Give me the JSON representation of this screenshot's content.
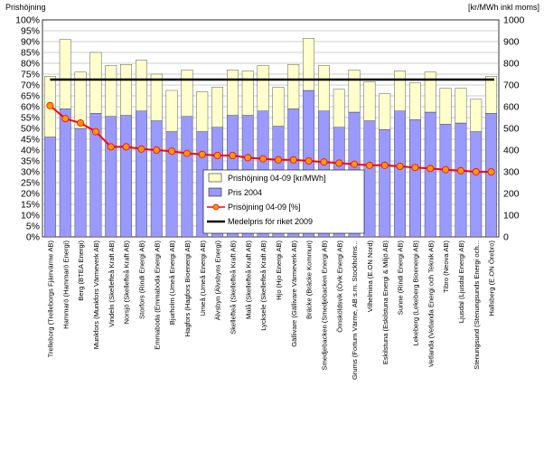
{
  "chart_data": {
    "type": "bar",
    "left_axis_title": "Prishöjning",
    "right_axis_title": "[kr/MWh inkl moms]",
    "left_ylim": [
      0,
      100
    ],
    "left_ticks": [
      "0%",
      "5%",
      "10%",
      "15%",
      "20%",
      "25%",
      "30%",
      "35%",
      "40%",
      "45%",
      "50%",
      "55%",
      "60%",
      "65%",
      "70%",
      "75%",
      "80%",
      "85%",
      "90%",
      "95%",
      "100%"
    ],
    "right_ylim": [
      0,
      1000
    ],
    "right_ticks": [
      "0",
      "100",
      "200",
      "300",
      "400",
      "500",
      "600",
      "700",
      "800",
      "900",
      "1000"
    ],
    "grid": true,
    "legend_position": "center-right",
    "categories": [
      "Trelleborg (Trelleborgs Fjärrvärme AB)",
      "Hammarö (Hammarö Energi)",
      "Berg (BTEA Energi)",
      "Munkfors (Munkfors Värmeverk AB)",
      "Vindeln (Skellefteå Kraft AB)",
      "Norsjö (Skellefteå Kraft AB)",
      "Storfors (Rindi Energi AB)",
      "Emmaboda (Emmaboda Energi AB)",
      "Bjurholm (Umeå Energi AB)",
      "Hagfors (Hagfors Bioenergi AB)",
      "Umeå (Umeå Energi AB)",
      "Älvsbyn (Älvsbyns Energi)",
      "Skellefteå (Skellefteå Kraft AB)",
      "Malå (Skellefteå Kraft AB)",
      "Lycksele (Skellefteå Kraft AB)",
      "Hjo (Hjo Energi AB)",
      "Gällivare (Gällivare Värmeverk AB)",
      "Bräcke (Bräcke Kommun)",
      "Smedjebacken (Smedjebacken Energi AB)",
      "Örnsköldsvik (Övik Energi AB)",
      "Grums (Fortum Värme, AB s.m. Stockholms...",
      "Vilhelmina (E.ON Nord)",
      "Eskilstuna (Eskilstuna Energi & Miljö AB)",
      "Sunne (Rindi Energi AB)",
      "Lekeberg (Lekeberg Bioenergi AB)",
      "Vetlanda (Vetlanda Energi och Teknik AB)",
      "Tibro (Neova AB)",
      "Ljusdal (Ljusdal Energi AB)",
      "Stenungsund (Stenungsunds Energi och...",
      "Hallsberg (E.ON Örebro)"
    ],
    "series": [
      {
        "name": "Pris 2004",
        "axis": "right",
        "kind": "stacked-bar-base",
        "color": "#9999ff",
        "values": [
          460,
          590,
          500,
          570,
          555,
          560,
          580,
          535,
          485,
          555,
          485,
          505,
          560,
          560,
          580,
          510,
          590,
          675,
          580,
          505,
          575,
          535,
          495,
          580,
          540,
          575,
          520,
          525,
          485,
          570
        ]
      },
      {
        "name": "Prishöjning 04-09 [kr/MWh]",
        "axis": "right",
        "kind": "stacked-bar-top",
        "color": "#ffffcc",
        "values": [
          280,
          320,
          260,
          280,
          235,
          235,
          235,
          215,
          190,
          215,
          185,
          185,
          210,
          205,
          210,
          180,
          205,
          240,
          210,
          175,
          195,
          180,
          165,
          185,
          170,
          185,
          165,
          160,
          150,
          170
        ]
      },
      {
        "name": "Prisöjning 04-09 [%]",
        "axis": "left",
        "kind": "line",
        "color": "#ff0000",
        "marker_color": "#ff9900",
        "values": [
          60.5,
          54.5,
          52.5,
          48.5,
          41.5,
          41.5,
          40.5,
          40,
          39.5,
          38.5,
          38,
          37.5,
          37.5,
          36.5,
          36,
          35.5,
          35.5,
          35,
          34.5,
          34,
          33.5,
          33,
          33,
          32.5,
          32,
          31.5,
          31,
          30.5,
          30,
          30
        ]
      },
      {
        "name": "Medelpris för riket 2009",
        "axis": "right",
        "kind": "reference-line",
        "color": "#000000",
        "value": 725
      }
    ]
  }
}
